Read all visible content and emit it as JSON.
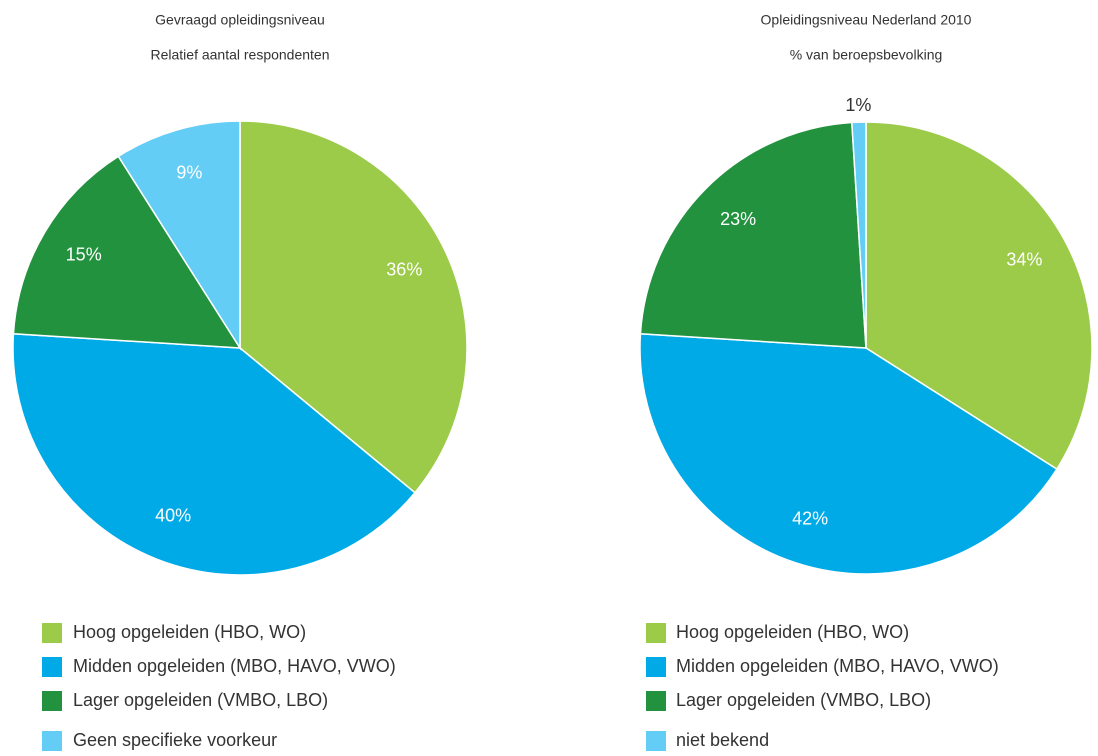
{
  "chart_data": [
    {
      "type": "pie",
      "title": "Gevraagd opleidingsniveau",
      "subtitle": "Relatief aantal respondenten",
      "categories": [
        "Hoog opgeleiden (HBO, WO)",
        "Midden opgeleiden (MBO, HAVO, VWO)",
        "Lager opgeleiden (VMBO, LBO)",
        "Geen specifieke voorkeur"
      ],
      "values": [
        36,
        40,
        15,
        9
      ],
      "value_labels": [
        "36%",
        "40%",
        "15%",
        "9%"
      ],
      "colors": [
        "#9ccb4a",
        "#00aae7",
        "#22923f",
        "#63cdf5"
      ],
      "legend": "bottom"
    },
    {
      "type": "pie",
      "title": "Opleidingsniveau Nederland 2010",
      "subtitle": "% van beroepsbevolking",
      "categories": [
        "Hoog opgeleiden (HBO, WO)",
        "Midden opgeleiden (MBO, HAVO, VWO)",
        "Lager opgeleiden (VMBO, LBO)",
        "niet bekend"
      ],
      "values": [
        34,
        42,
        23,
        1
      ],
      "value_labels": [
        "34%",
        "42%",
        "23%",
        "1%"
      ],
      "colors": [
        "#9ccb4a",
        "#00aae7",
        "#22923f",
        "#63cdf5"
      ],
      "legend": "bottom"
    }
  ]
}
